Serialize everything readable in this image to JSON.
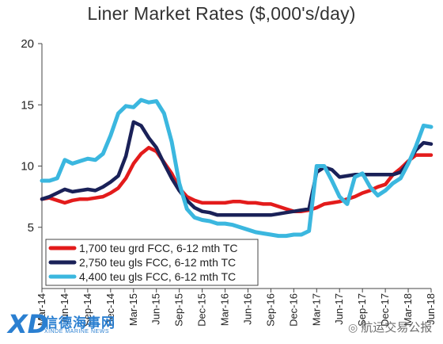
{
  "chart_data": {
    "type": "line",
    "title": "Liner Market Rates ($,000's/day)",
    "xlabel": "",
    "ylabel": "",
    "ylim": [
      0,
      20
    ],
    "xlim": [
      "2014-03",
      "2018-06"
    ],
    "yticks": [
      "5",
      "10",
      "15",
      "20"
    ],
    "xticks": [
      {
        "label": "Mar-14",
        "t": "2014-03"
      },
      {
        "label": "Jun-14",
        "t": "2014-06"
      },
      {
        "label": "Sep-14",
        "t": "2014-09"
      },
      {
        "label": "Dec-14",
        "t": "2014-12"
      },
      {
        "label": "Mar-15",
        "t": "2015-03"
      },
      {
        "label": "Jun-15",
        "t": "2015-06"
      },
      {
        "label": "Sep-15",
        "t": "2015-09"
      },
      {
        "label": "Dec-15",
        "t": "2015-12"
      },
      {
        "label": "Mar-16",
        "t": "2016-03"
      },
      {
        "label": "Jun-16",
        "t": "2016-06"
      },
      {
        "label": "Sep-16",
        "t": "2016-09"
      },
      {
        "label": "Dec-16",
        "t": "2016-12"
      },
      {
        "label": "Mar-17",
        "t": "2017-03"
      },
      {
        "label": "Jun-17",
        "t": "2017-06"
      },
      {
        "label": "Sep-17",
        "t": "2017-09"
      },
      {
        "label": "Dec-17",
        "t": "2017-12"
      },
      {
        "label": "Mar-18",
        "t": "2018-03"
      },
      {
        "label": "Jun-18",
        "t": "2018-06"
      }
    ],
    "grid": false,
    "legend": "bottom-left",
    "series": [
      {
        "name": "1,700 teu grd FCC, 6-12 mth TC",
        "color": "#e31b1b",
        "points": [
          [
            "2014-03",
            7.3
          ],
          [
            "2014-04",
            7.4
          ],
          [
            "2014-05",
            7.2
          ],
          [
            "2014-06",
            7.0
          ],
          [
            "2014-07",
            7.2
          ],
          [
            "2014-08",
            7.3
          ],
          [
            "2014-09",
            7.3
          ],
          [
            "2014-10",
            7.4
          ],
          [
            "2014-11",
            7.5
          ],
          [
            "2014-12",
            7.8
          ],
          [
            "2015-01",
            8.2
          ],
          [
            "2015-02",
            9.0
          ],
          [
            "2015-03",
            10.2
          ],
          [
            "2015-04",
            11.0
          ],
          [
            "2015-05",
            11.5
          ],
          [
            "2015-06",
            11.2
          ],
          [
            "2015-07",
            10.3
          ],
          [
            "2015-08",
            9.4
          ],
          [
            "2015-09",
            8.2
          ],
          [
            "2015-10",
            7.5
          ],
          [
            "2015-11",
            7.2
          ],
          [
            "2015-12",
            7.0
          ],
          [
            "2016-01",
            7.0
          ],
          [
            "2016-02",
            7.0
          ],
          [
            "2016-03",
            7.0
          ],
          [
            "2016-04",
            7.1
          ],
          [
            "2016-05",
            7.1
          ],
          [
            "2016-06",
            7.0
          ],
          [
            "2016-07",
            7.0
          ],
          [
            "2016-08",
            6.9
          ],
          [
            "2016-09",
            6.9
          ],
          [
            "2016-10",
            6.7
          ],
          [
            "2016-11",
            6.5
          ],
          [
            "2016-12",
            6.3
          ],
          [
            "2017-01",
            6.3
          ],
          [
            "2017-02",
            6.4
          ],
          [
            "2017-03",
            6.6
          ],
          [
            "2017-04",
            6.9
          ],
          [
            "2017-05",
            7.0
          ],
          [
            "2017-06",
            7.1
          ],
          [
            "2017-07",
            7.3
          ],
          [
            "2017-08",
            7.5
          ],
          [
            "2017-09",
            7.8
          ],
          [
            "2017-10",
            8.0
          ],
          [
            "2017-11",
            8.3
          ],
          [
            "2017-12",
            8.5
          ],
          [
            "2018-01",
            9.3
          ],
          [
            "2018-02",
            9.8
          ],
          [
            "2018-03",
            10.4
          ],
          [
            "2018-04",
            10.9
          ],
          [
            "2018-05",
            10.9
          ],
          [
            "2018-06",
            10.9
          ]
        ]
      },
      {
        "name": "2,750 teu gls FCC, 6-12 mth TC",
        "color": "#1a2158",
        "points": [
          [
            "2014-03",
            7.3
          ],
          [
            "2014-04",
            7.5
          ],
          [
            "2014-05",
            7.8
          ],
          [
            "2014-06",
            8.1
          ],
          [
            "2014-07",
            7.9
          ],
          [
            "2014-08",
            8.0
          ],
          [
            "2014-09",
            8.1
          ],
          [
            "2014-10",
            8.0
          ],
          [
            "2014-11",
            8.3
          ],
          [
            "2014-12",
            8.7
          ],
          [
            "2015-01",
            9.2
          ],
          [
            "2015-02",
            10.8
          ],
          [
            "2015-03",
            13.6
          ],
          [
            "2015-04",
            13.3
          ],
          [
            "2015-05",
            12.3
          ],
          [
            "2015-06",
            11.5
          ],
          [
            "2015-07",
            10.2
          ],
          [
            "2015-08",
            9.0
          ],
          [
            "2015-09",
            8.0
          ],
          [
            "2015-10",
            7.2
          ],
          [
            "2015-11",
            6.6
          ],
          [
            "2015-12",
            6.3
          ],
          [
            "2016-01",
            6.2
          ],
          [
            "2016-02",
            6.0
          ],
          [
            "2016-03",
            6.0
          ],
          [
            "2016-04",
            6.0
          ],
          [
            "2016-05",
            6.0
          ],
          [
            "2016-06",
            6.0
          ],
          [
            "2016-07",
            6.0
          ],
          [
            "2016-08",
            6.0
          ],
          [
            "2016-09",
            6.0
          ],
          [
            "2016-10",
            6.1
          ],
          [
            "2016-11",
            6.2
          ],
          [
            "2016-12",
            6.3
          ],
          [
            "2017-01",
            6.4
          ],
          [
            "2017-02",
            6.5
          ],
          [
            "2017-03",
            9.5
          ],
          [
            "2017-04",
            9.9
          ],
          [
            "2017-05",
            9.7
          ],
          [
            "2017-06",
            9.1
          ],
          [
            "2017-07",
            9.2
          ],
          [
            "2017-08",
            9.3
          ],
          [
            "2017-09",
            9.3
          ],
          [
            "2017-10",
            9.3
          ],
          [
            "2017-11",
            9.3
          ],
          [
            "2017-12",
            9.3
          ],
          [
            "2018-01",
            9.3
          ],
          [
            "2018-02",
            9.5
          ],
          [
            "2018-03",
            10.3
          ],
          [
            "2018-04",
            11.3
          ],
          [
            "2018-05",
            11.9
          ],
          [
            "2018-06",
            11.8
          ]
        ]
      },
      {
        "name": "4,400 teu gls FCC, 6-12 mth TC",
        "color": "#3bb7df",
        "points": [
          [
            "2014-03",
            8.8
          ],
          [
            "2014-04",
            8.8
          ],
          [
            "2014-05",
            9.0
          ],
          [
            "2014-06",
            10.5
          ],
          [
            "2014-07",
            10.2
          ],
          [
            "2014-08",
            10.4
          ],
          [
            "2014-09",
            10.6
          ],
          [
            "2014-10",
            10.5
          ],
          [
            "2014-11",
            11.0
          ],
          [
            "2014-12",
            12.5
          ],
          [
            "2015-01",
            14.3
          ],
          [
            "2015-02",
            14.9
          ],
          [
            "2015-03",
            14.8
          ],
          [
            "2015-04",
            15.4
          ],
          [
            "2015-05",
            15.2
          ],
          [
            "2015-06",
            15.3
          ],
          [
            "2015-07",
            14.3
          ],
          [
            "2015-08",
            12.0
          ],
          [
            "2015-09",
            8.6
          ],
          [
            "2015-10",
            6.5
          ],
          [
            "2015-11",
            5.8
          ],
          [
            "2015-12",
            5.6
          ],
          [
            "2016-01",
            5.5
          ],
          [
            "2016-02",
            5.3
          ],
          [
            "2016-03",
            5.3
          ],
          [
            "2016-04",
            5.2
          ],
          [
            "2016-05",
            5.0
          ],
          [
            "2016-06",
            4.8
          ],
          [
            "2016-07",
            4.6
          ],
          [
            "2016-08",
            4.5
          ],
          [
            "2016-09",
            4.4
          ],
          [
            "2016-10",
            4.3
          ],
          [
            "2016-11",
            4.3
          ],
          [
            "2016-12",
            4.4
          ],
          [
            "2017-01",
            4.4
          ],
          [
            "2017-02",
            4.7
          ],
          [
            "2017-03",
            10.0
          ],
          [
            "2017-04",
            10.0
          ],
          [
            "2017-05",
            8.8
          ],
          [
            "2017-06",
            7.5
          ],
          [
            "2017-07",
            6.9
          ],
          [
            "2017-08",
            9.1
          ],
          [
            "2017-09",
            9.4
          ],
          [
            "2017-10",
            8.3
          ],
          [
            "2017-11",
            7.6
          ],
          [
            "2017-12",
            8.0
          ],
          [
            "2018-01",
            8.6
          ],
          [
            "2018-02",
            9.0
          ],
          [
            "2018-03",
            10.2
          ],
          [
            "2018-04",
            11.6
          ],
          [
            "2018-05",
            13.3
          ],
          [
            "2018-06",
            13.2
          ]
        ]
      }
    ]
  },
  "watermarks": {
    "left_cn": "信德海事网",
    "left_en": "XINDE MARINE NEWS",
    "left_mark": "XD",
    "right_icon": "wechat-icon",
    "right_text": "航运交易公报"
  }
}
